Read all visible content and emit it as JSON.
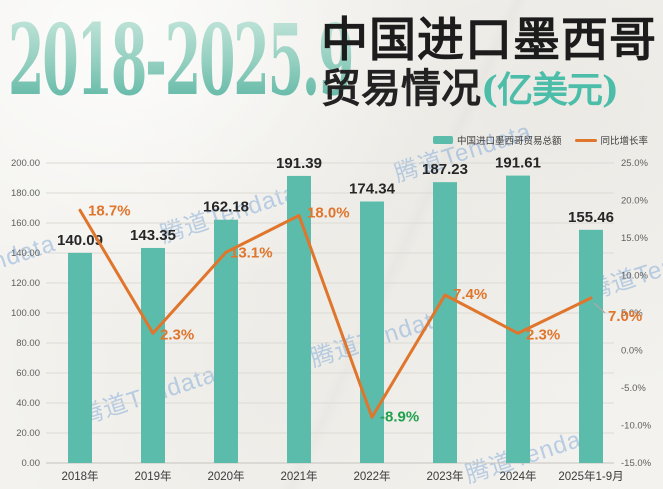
{
  "header": {
    "years": "2018-2025.9",
    "title_line1": "中国进口墨西哥",
    "title_line2": "贸易情况",
    "title_unit": "(亿美元)"
  },
  "watermark": {
    "text": "腾道Tendata"
  },
  "legend": {
    "bars_label": "中国进口墨西哥贸易总额",
    "line_label": "同比增长率"
  },
  "colors": {
    "bar": "#5bbcab",
    "line": "#e0752c",
    "growth_label_positive": "#e0752c",
    "growth_label_negative": "#1fa14d",
    "bar_value_label": "#262626",
    "grid": "#dcdad4",
    "axis_baseline": "#c6c4bf",
    "tick_label": "#5f5f5f",
    "x_label": "#3b3b3b",
    "title_teal": "#4cbda9"
  },
  "chart_data": {
    "type": "bar",
    "subtype": "combo-bar-line-dual-axis",
    "title": "2018-2025.9 中国进口墨西哥贸易情况(亿美元)",
    "categories": [
      "2018年",
      "2019年",
      "2020年",
      "2021年",
      "2022年",
      "2023年",
      "2024年",
      "2025年1-9月"
    ],
    "series": [
      {
        "name": "中国进口墨西哥贸易总额",
        "type": "bar",
        "unit": "亿美元",
        "axis": "left",
        "values": [
          140.09,
          143.35,
          162.18,
          191.39,
          174.34,
          187.23,
          191.61,
          155.46
        ],
        "labels": [
          "140.09",
          "143.35",
          "162.18",
          "191.39",
          "174.34",
          "187.23",
          "191.61",
          "155.46"
        ]
      },
      {
        "name": "同比增长率",
        "type": "line",
        "unit": "%",
        "axis": "right",
        "values": [
          18.7,
          2.3,
          13.1,
          18.0,
          -8.9,
          7.4,
          2.3,
          7.0
        ],
        "labels": [
          "18.7%",
          "2.3%",
          "13.1%",
          "18.0%",
          "-8.9%",
          "7.4%",
          "2.3%",
          "7.0%"
        ]
      }
    ],
    "left_axis": {
      "min": 0,
      "max": 200,
      "step": 20,
      "ticks": [
        "0.00",
        "20.00",
        "40.00",
        "60.00",
        "80.00",
        "100.00",
        "120.00",
        "140.00",
        "160.00",
        "180.00",
        "200.00"
      ]
    },
    "right_axis": {
      "min": -15,
      "max": 25,
      "step": 5,
      "ticks": [
        "-15.0%",
        "-10.0%",
        "-5.0%",
        "0.0%",
        "5.0%",
        "10.0%",
        "15.0%",
        "20.0%",
        "25.0%"
      ]
    },
    "grid": true,
    "legend_position": "top-right"
  }
}
